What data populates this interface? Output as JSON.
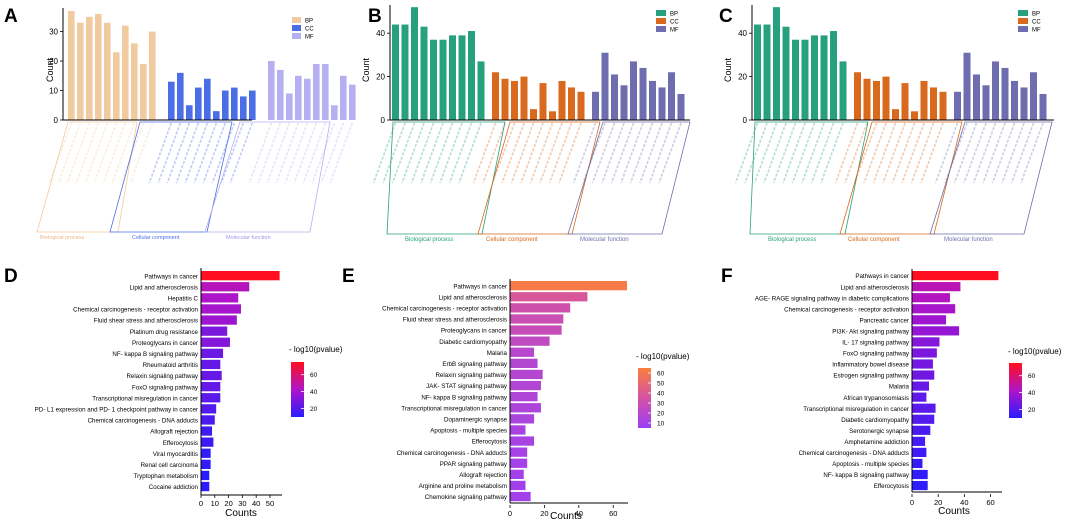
{
  "panel_labels": [
    "A",
    "B",
    "C",
    "D",
    "E",
    "F"
  ],
  "go_common": {
    "xlabel": "",
    "ylabel": "Count",
    "legend": [
      "BP",
      "CC",
      "MF"
    ],
    "group_labels": [
      "Biological process",
      "Cellular component",
      "Molecular function"
    ]
  },
  "enrich_common": {
    "xlabel": "Counts",
    "legend_title": "- log10(pvalue)"
  },
  "colors": {
    "A": {
      "BP": "#f2caa0",
      "CC": "#4b6ee6",
      "MF": "#b6aff2"
    },
    "B": {
      "BP": "#27a07d",
      "CC": "#d8691d",
      "MF": "#6d6db0"
    },
    "C": {
      "BP": "#27a07d",
      "CC": "#d8691d",
      "MF": "#6d6db0"
    }
  },
  "chart_data": [
    {
      "id": "A",
      "type": "bar",
      "title": "",
      "ylabel": "Count",
      "ylim": [
        0,
        38
      ],
      "yticks": [
        0,
        10,
        20,
        30
      ],
      "legend": "top-right",
      "series": [
        {
          "name": "BP",
          "values": [
            37,
            33,
            35,
            36,
            33,
            23,
            32,
            26,
            19,
            30
          ]
        },
        {
          "name": "CC",
          "values": [
            13,
            16,
            5,
            11,
            14,
            3,
            10,
            11,
            8,
            10
          ]
        },
        {
          "name": "MF",
          "values": [
            20,
            17,
            9,
            15,
            14,
            19,
            19,
            5,
            15,
            12
          ]
        }
      ]
    },
    {
      "id": "B",
      "type": "bar",
      "title": "",
      "ylabel": "Count",
      "ylim": [
        0,
        53
      ],
      "yticks": [
        0,
        20,
        40
      ],
      "legend": "top-right",
      "series": [
        {
          "name": "BP",
          "values": [
            44,
            44,
            52,
            43,
            37,
            37,
            39,
            39,
            41,
            27
          ]
        },
        {
          "name": "CC",
          "values": [
            22,
            19,
            18,
            20,
            5,
            17,
            4,
            18,
            15,
            13
          ]
        },
        {
          "name": "MF",
          "values": [
            13,
            31,
            21,
            16,
            27,
            24,
            18,
            15,
            22,
            12
          ]
        }
      ]
    },
    {
      "id": "C",
      "type": "bar",
      "title": "",
      "ylabel": "Count",
      "ylim": [
        0,
        53
      ],
      "yticks": [
        0,
        20,
        40
      ],
      "legend": "top-right",
      "series": [
        {
          "name": "BP",
          "values": [
            44,
            44,
            52,
            43,
            37,
            37,
            39,
            39,
            41,
            27
          ]
        },
        {
          "name": "CC",
          "values": [
            22,
            19,
            18,
            20,
            5,
            17,
            4,
            18,
            15,
            13
          ]
        },
        {
          "name": "MF",
          "values": [
            13,
            31,
            21,
            16,
            27,
            24,
            18,
            15,
            22,
            12
          ]
        }
      ]
    },
    {
      "id": "D",
      "type": "bar",
      "orientation": "horizontal",
      "xlabel": "Counts",
      "xlim": [
        0,
        58
      ],
      "xticks": [
        0,
        10,
        20,
        30,
        40,
        50
      ],
      "legend_title": "- log10(pvalue)",
      "color_range": [
        10,
        75
      ],
      "color_ticks": [
        20,
        40,
        60
      ],
      "categories": [
        "Pathways in cancer",
        "Lipid and atherosclerosis",
        "Hepatitis C",
        "Chemical carcinogenesis - receptor activation",
        "Fluid shear stress and atherosclerosis",
        "Platinum drug resistance",
        "Proteoglycans in cancer",
        "NF- kappa B signaling pathway",
        "Rheumatoid arthritis",
        "Relaxin signaling pathway",
        "FoxO signaling pathway",
        "Transcriptional misregulation in cancer",
        "PD- L1 expression and PD- 1 checkpoint pathway in cancer",
        "Chemical carcinogenesis - DNA adducts",
        "Allograft rejection",
        "Efferocytosis",
        "Viral myocarditis",
        "Renal cell carcinoma",
        "Tryptophan metabolism",
        "Cocaine addiction"
      ],
      "values": [
        57,
        35,
        27,
        29,
        26,
        19,
        21,
        16,
        14,
        15,
        14,
        14,
        11,
        10,
        8,
        9,
        7,
        7,
        6,
        6
      ],
      "pvalues": [
        75,
        45,
        42,
        40,
        38,
        30,
        32,
        26,
        24,
        25,
        24,
        22,
        20,
        18,
        15,
        14,
        12,
        12,
        10,
        10
      ]
    },
    {
      "id": "E",
      "type": "bar",
      "orientation": "horizontal",
      "xlabel": "Counts",
      "xlim": [
        0,
        68
      ],
      "xticks": [
        0,
        20,
        40,
        60
      ],
      "legend_title": "- log10(pvalue)",
      "color_range": [
        5,
        65
      ],
      "color_ticks": [
        10,
        20,
        30,
        40,
        50,
        60
      ],
      "categories": [
        "Pathways in cancer",
        "Lipid and atherosclerosis",
        "Chemical carcinogenesis - receptor activation",
        "Fluid shear stress and atherosclerosis",
        "Proteoglycans in cancer",
        "Diabetic cardiomyopathy",
        "Malaria",
        "ErbB signaling pathway",
        "Relaxin signaling pathway",
        "JAK- STAT signaling pathway",
        "NF- kappa B signaling pathway",
        "Transcriptional misregulation in cancer",
        "Dopaminergic synapse",
        "Apoptosis - multiple species",
        "Efferocytosis",
        "Chemical carcinogenesis - DNA adducts",
        "PPAR signaling pathway",
        "Allograft rejection",
        "Arginine and proline metabolism",
        "Chemokine signaling pathway"
      ],
      "values": [
        68,
        45,
        35,
        31,
        30,
        23,
        14,
        16,
        19,
        18,
        16,
        18,
        14,
        9,
        14,
        10,
        10,
        8,
        9,
        12
      ],
      "pvalues": [
        62,
        38,
        32,
        30,
        28,
        24,
        20,
        18,
        18,
        17,
        16,
        15,
        14,
        13,
        12,
        11,
        10,
        10,
        9,
        9
      ]
    },
    {
      "id": "F",
      "type": "bar",
      "orientation": "horizontal",
      "xlabel": "Counts",
      "xlim": [
        0,
        68
      ],
      "xticks": [
        0,
        20,
        40,
        60
      ],
      "legend_title": "- log10(pvalue)",
      "color_range": [
        10,
        75
      ],
      "color_ticks": [
        20,
        40,
        60
      ],
      "categories": [
        "Pathways in cancer",
        "Lipid and atherosclerosis",
        "AGE- RAGE signaling pathway in diabetic complications",
        "Chemical carcinogenesis - receptor activation",
        "Pancreatic cancer",
        "PI3K- Akt signaling pathway",
        "IL- 17 signaling pathway",
        "FoxO signaling pathway",
        "Inflammatory bowel disease",
        "Estrogen signaling pathway",
        "Malaria",
        "African trypanosomiasis",
        "Transcriptional misregulation in cancer",
        "Diabetic cardiomyopathy",
        "Serotonergic synapse",
        "Amphetamine addiction",
        "Chemical carcinogenesis - DNA adducts",
        "Apoptosis - multiple species",
        "NF- kappa B signaling pathway",
        "Efferocytosis"
      ],
      "values": [
        66,
        37,
        29,
        33,
        26,
        36,
        21,
        19,
        16,
        17,
        13,
        11,
        18,
        17,
        14,
        10,
        11,
        8,
        12,
        12
      ],
      "pvalues": [
        75,
        46,
        44,
        40,
        38,
        36,
        32,
        30,
        28,
        27,
        25,
        23,
        22,
        20,
        18,
        16,
        15,
        13,
        12,
        11
      ]
    }
  ]
}
